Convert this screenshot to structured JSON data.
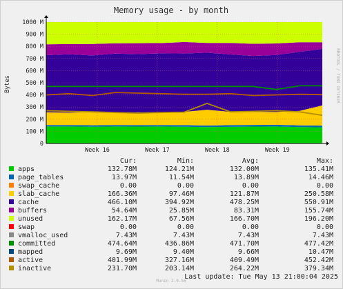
{
  "chart_data": {
    "type": "area",
    "title": "Memory usage - by month",
    "ylabel": "Bytes",
    "side_label": "RRDTOOL / TOBI OETIKER",
    "version_label": "Munin 2.0.56",
    "last_update": "Last update: Tue May 13 21:00:04 2025",
    "ylim": [
      0,
      1000
    ],
    "y_ticks": [
      {
        "value": 0,
        "label": "0"
      },
      {
        "value": 100,
        "label": "100 M"
      },
      {
        "value": 200,
        "label": "200 M"
      },
      {
        "value": 300,
        "label": "300 M"
      },
      {
        "value": 400,
        "label": "400 M"
      },
      {
        "value": 500,
        "label": "500 M"
      },
      {
        "value": 600,
        "label": "600 M"
      },
      {
        "value": 700,
        "label": "700 M"
      },
      {
        "value": 800,
        "label": "800 M"
      },
      {
        "value": 900,
        "label": "900 M"
      },
      {
        "value": 1000,
        "label": "1000 M"
      }
    ],
    "x_ticks": [
      "Week 16",
      "Week 17",
      "Week 18",
      "Week 19"
    ],
    "x_tick_positions": [
      1.0,
      2.0,
      3.0,
      4.0
    ],
    "x_range": [
      0.15,
      4.75
    ],
    "grid": true,
    "legend_headers": [
      "Cur:",
      "Min:",
      "Avg:",
      "Max:"
    ],
    "colors": {
      "apps": "#00cc00",
      "page_tables": "#0066b3",
      "swap_cache": "#ff8000",
      "slab_cache": "#ffcc00",
      "cache": "#330099",
      "buffers": "#990099",
      "unused": "#ccff00",
      "swap": "#ff0000",
      "vmalloc_used": "#888888",
      "committed": "#008f00",
      "mapped": "#00487d",
      "active": "#b35a00",
      "inactive": "#b38f00"
    },
    "series": [
      {
        "name": "apps",
        "cur": "132.78M",
        "min": "124.21M",
        "avg": "132.00M",
        "max": "135.41M"
      },
      {
        "name": "page_tables",
        "cur": "13.97M",
        "min": "11.54M",
        "avg": "13.89M",
        "max": "14.46M"
      },
      {
        "name": "swap_cache",
        "cur": "0.00",
        "min": "0.00",
        "avg": "0.00",
        "max": "0.00"
      },
      {
        "name": "slab_cache",
        "cur": "166.36M",
        "min": "97.46M",
        "avg": "121.87M",
        "max": "250.58M"
      },
      {
        "name": "cache",
        "cur": "466.10M",
        "min": "394.92M",
        "avg": "478.25M",
        "max": "550.91M"
      },
      {
        "name": "buffers",
        "cur": "54.64M",
        "min": "25.85M",
        "avg": "83.31M",
        "max": "155.74M"
      },
      {
        "name": "unused",
        "cur": "162.17M",
        "min": "67.56M",
        "avg": "166.70M",
        "max": "196.20M"
      },
      {
        "name": "swap",
        "cur": "0.00",
        "min": "0.00",
        "avg": "0.00",
        "max": "0.00"
      },
      {
        "name": "vmalloc_used",
        "cur": "7.43M",
        "min": "7.43M",
        "avg": "7.43M",
        "max": "7.43M"
      },
      {
        "name": "committed",
        "cur": "474.64M",
        "min": "436.86M",
        "avg": "471.70M",
        "max": "477.42M"
      },
      {
        "name": "mapped",
        "cur": "9.69M",
        "min": "9.40M",
        "avg": "9.66M",
        "max": "10.47M"
      },
      {
        "name": "active",
        "cur": "401.99M",
        "min": "327.16M",
        "avg": "409.49M",
        "max": "452.42M"
      },
      {
        "name": "inactive",
        "cur": "231.70M",
        "min": "203.14M",
        "avg": "264.22M",
        "max": "379.34M"
      }
    ],
    "stack_approx": [
      {
        "name": "apps",
        "values": [
          140,
          140,
          138,
          140,
          139,
          140,
          138,
          135,
          137,
          139,
          140,
          135,
          133
        ]
      },
      {
        "name": "page_tables",
        "values": [
          12,
          12,
          12,
          12,
          12,
          12,
          13,
          13,
          14,
          14,
          14,
          14,
          14
        ]
      },
      {
        "name": "slab_cache",
        "values": [
          105,
          102,
          110,
          100,
          105,
          100,
          110,
          130,
          110,
          108,
          105,
          120,
          166
        ]
      },
      {
        "name": "cache",
        "values": [
          470,
          480,
          465,
          488,
          480,
          490,
          480,
          470,
          472,
          460,
          470,
          485,
          466
        ]
      },
      {
        "name": "buffers",
        "values": [
          90,
          85,
          95,
          85,
          90,
          85,
          95,
          80,
          95,
          100,
          95,
          80,
          55
        ]
      },
      {
        "name": "unused",
        "values": [
          183,
          181,
          180,
          175,
          174,
          173,
          164,
          172,
          172,
          179,
          176,
          166,
          166
        ]
      }
    ],
    "line_approx": [
      {
        "name": "committed",
        "values": [
          470,
          470,
          470,
          470,
          470,
          470,
          470,
          470,
          470,
          470,
          445,
          475,
          475
        ]
      },
      {
        "name": "active",
        "values": [
          400,
          410,
          395,
          420,
          415,
          410,
          405,
          405,
          410,
          395,
          400,
          405,
          402
        ]
      },
      {
        "name": "inactive",
        "values": [
          270,
          265,
          260,
          255,
          250,
          255,
          258,
          330,
          260,
          265,
          270,
          260,
          232
        ]
      }
    ],
    "x_sample": [
      0.15,
      0.53,
      0.92,
      1.3,
      1.68,
      2.07,
      2.45,
      2.83,
      3.22,
      3.6,
      3.98,
      4.37,
      4.75
    ]
  }
}
